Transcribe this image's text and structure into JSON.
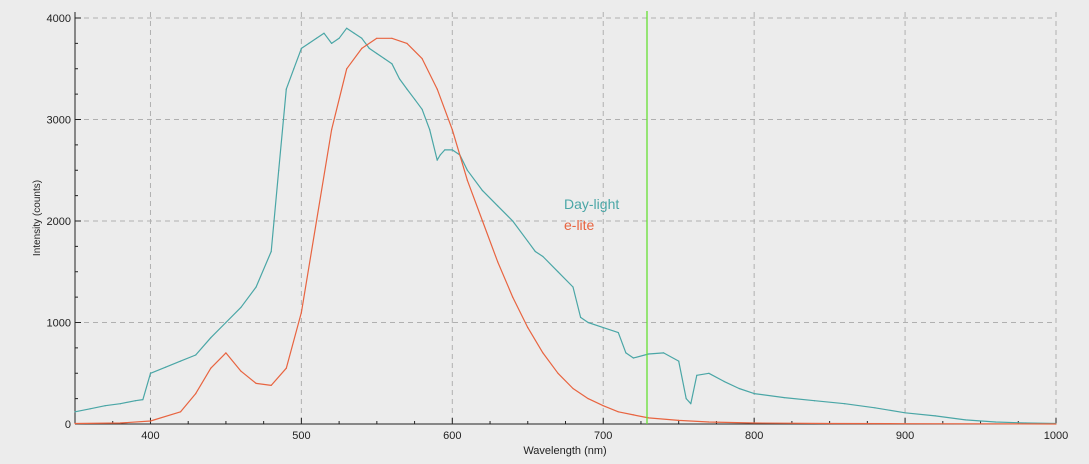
{
  "chart_data": {
    "type": "line",
    "xlabel": "Wavelength (nm)",
    "ylabel": "Intensity (counts)",
    "xlim": [
      350,
      1000
    ],
    "ylim": [
      0,
      4000
    ],
    "x_ticks": [
      "400",
      "500",
      "600",
      "700",
      "800",
      "900",
      "1000"
    ],
    "y_ticks": [
      "0",
      "1000",
      "2000",
      "3000",
      "4000"
    ],
    "grid": true,
    "legend_position": "center-right",
    "marker_line": {
      "x": 729,
      "color": "#66e033"
    },
    "series": [
      {
        "name": "Day-light",
        "color": "#4aa6a6",
        "x": [
          350,
          360,
          370,
          380,
          390,
          395,
          400,
          410,
          420,
          430,
          440,
          450,
          460,
          470,
          480,
          485,
          490,
          495,
          500,
          505,
          510,
          515,
          520,
          525,
          530,
          535,
          540,
          545,
          550,
          555,
          560,
          565,
          570,
          575,
          580,
          585,
          590,
          592,
          595,
          600,
          605,
          610,
          620,
          630,
          640,
          650,
          655,
          660,
          670,
          680,
          685,
          690,
          700,
          710,
          715,
          720,
          730,
          740,
          750,
          755,
          758,
          762,
          770,
          780,
          790,
          800,
          820,
          840,
          860,
          880,
          900,
          920,
          940,
          960,
          980,
          1000
        ],
        "values": [
          120,
          150,
          180,
          200,
          230,
          240,
          500,
          560,
          620,
          680,
          850,
          1000,
          1150,
          1350,
          1700,
          2500,
          3300,
          3500,
          3700,
          3750,
          3800,
          3850,
          3750,
          3800,
          3900,
          3850,
          3800,
          3700,
          3650,
          3600,
          3550,
          3400,
          3300,
          3200,
          3100,
          2900,
          2600,
          2650,
          2700,
          2700,
          2650,
          2500,
          2300,
          2150,
          2000,
          1800,
          1700,
          1650,
          1500,
          1350,
          1050,
          1000,
          950,
          900,
          700,
          650,
          690,
          700,
          620,
          250,
          200,
          480,
          500,
          420,
          350,
          300,
          260,
          230,
          200,
          160,
          110,
          80,
          40,
          20,
          10,
          5
        ]
      },
      {
        "name": "e-lite",
        "color": "#e86440",
        "x": [
          350,
          380,
          400,
          420,
          430,
          440,
          450,
          460,
          470,
          480,
          490,
          500,
          510,
          520,
          530,
          540,
          550,
          560,
          570,
          580,
          590,
          600,
          610,
          620,
          630,
          640,
          650,
          660,
          670,
          680,
          690,
          700,
          710,
          720,
          730,
          750,
          770,
          800,
          850,
          900,
          950,
          1000
        ],
        "values": [
          5,
          10,
          30,
          120,
          300,
          550,
          700,
          520,
          400,
          380,
          550,
          1100,
          2000,
          2900,
          3500,
          3700,
          3800,
          3800,
          3750,
          3600,
          3300,
          2900,
          2400,
          2000,
          1600,
          1250,
          950,
          700,
          500,
          350,
          250,
          180,
          120,
          90,
          60,
          35,
          20,
          10,
          5,
          3,
          2,
          0
        ]
      }
    ]
  }
}
